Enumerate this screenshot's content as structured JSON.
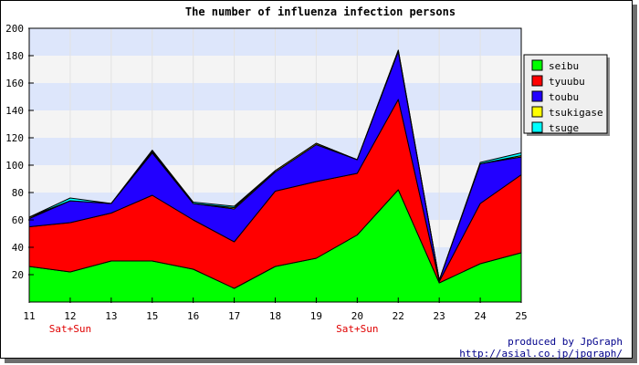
{
  "chart_data": {
    "type": "area",
    "stacked": true,
    "title": "The number of influenza infection persons",
    "xlabel": "",
    "ylabel": "",
    "x": [
      "11",
      "12",
      "13",
      "15",
      "16",
      "17",
      "18",
      "19",
      "20",
      "22",
      "23",
      "24",
      "25"
    ],
    "x_annotations": [
      {
        "at": "12",
        "text": "Sat+Sun"
      },
      {
        "at": "20",
        "text": "Sat+Sun"
      }
    ],
    "ylim": [
      0,
      200
    ],
    "yticks": [
      20,
      40,
      60,
      80,
      100,
      120,
      140,
      160,
      180,
      200
    ],
    "grid": true,
    "legend_position": "right",
    "series": [
      {
        "name": "seibu",
        "color": "#00ff00",
        "values": [
          26,
          22,
          30,
          30,
          24,
          10,
          26,
          32,
          49,
          82,
          14,
          28,
          36
        ]
      },
      {
        "name": "tyuubu",
        "color": "#ff0000",
        "values": [
          29,
          36,
          35,
          48,
          36,
          34,
          55,
          56,
          45,
          66,
          1,
          44,
          57
        ]
      },
      {
        "name": "toubu",
        "color": "#2200ff",
        "values": [
          6,
          16,
          7,
          31,
          12,
          24,
          14,
          27,
          10,
          35,
          1,
          29,
          13
        ]
      },
      {
        "name": "tsukigase",
        "color": "#ffff00",
        "values": [
          1,
          0,
          0,
          1,
          0,
          1,
          1,
          1,
          0,
          1,
          0,
          0,
          1
        ]
      },
      {
        "name": "tsuge",
        "color": "#00ffff",
        "values": [
          0,
          2,
          0,
          1,
          1,
          1,
          0,
          0,
          0,
          0,
          0,
          1,
          2
        ]
      }
    ]
  },
  "credits": {
    "line1": "produced by JpGraph",
    "line2": "http://asial.co.jp/jpgraph/"
  }
}
